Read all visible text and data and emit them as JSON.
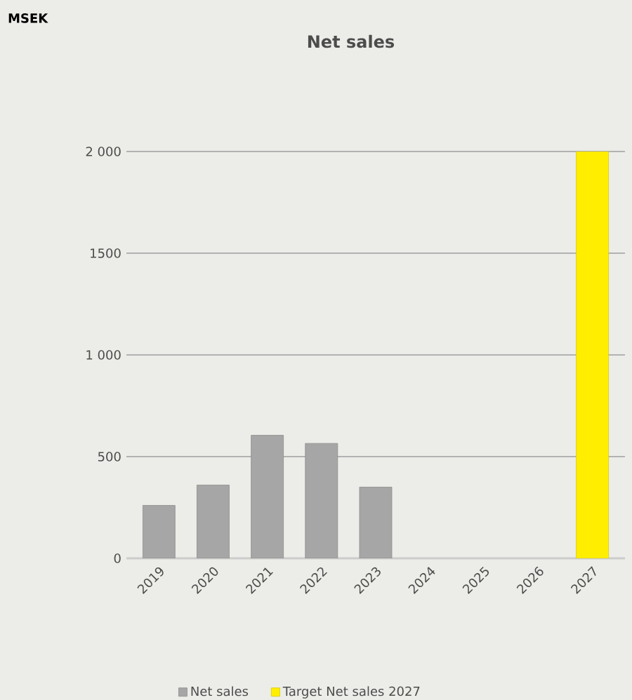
{
  "chart_data": {
    "type": "bar",
    "title": "Net sales",
    "annotations": [
      "MSEK"
    ],
    "categories": [
      "2019",
      "2020",
      "2021",
      "2022",
      "2023",
      "2024",
      "2025",
      "2026",
      "2027"
    ],
    "series": [
      {
        "name": "Net sales",
        "color": "#a6a6a6",
        "values": [
          260,
          360,
          605,
          565,
          350,
          null,
          null,
          null,
          null
        ]
      },
      {
        "name": "Target Net sales 2027",
        "color": "#ffee00",
        "values": [
          null,
          null,
          null,
          null,
          null,
          null,
          null,
          null,
          2000
        ]
      }
    ],
    "ylim": [
      0,
      2000
    ],
    "yticks": [
      0,
      500,
      {
        "value": 1000,
        "label": "1 000"
      },
      1500,
      {
        "value": 2000,
        "label": "2 000"
      }
    ],
    "grid": "y",
    "legend": "bottom"
  }
}
